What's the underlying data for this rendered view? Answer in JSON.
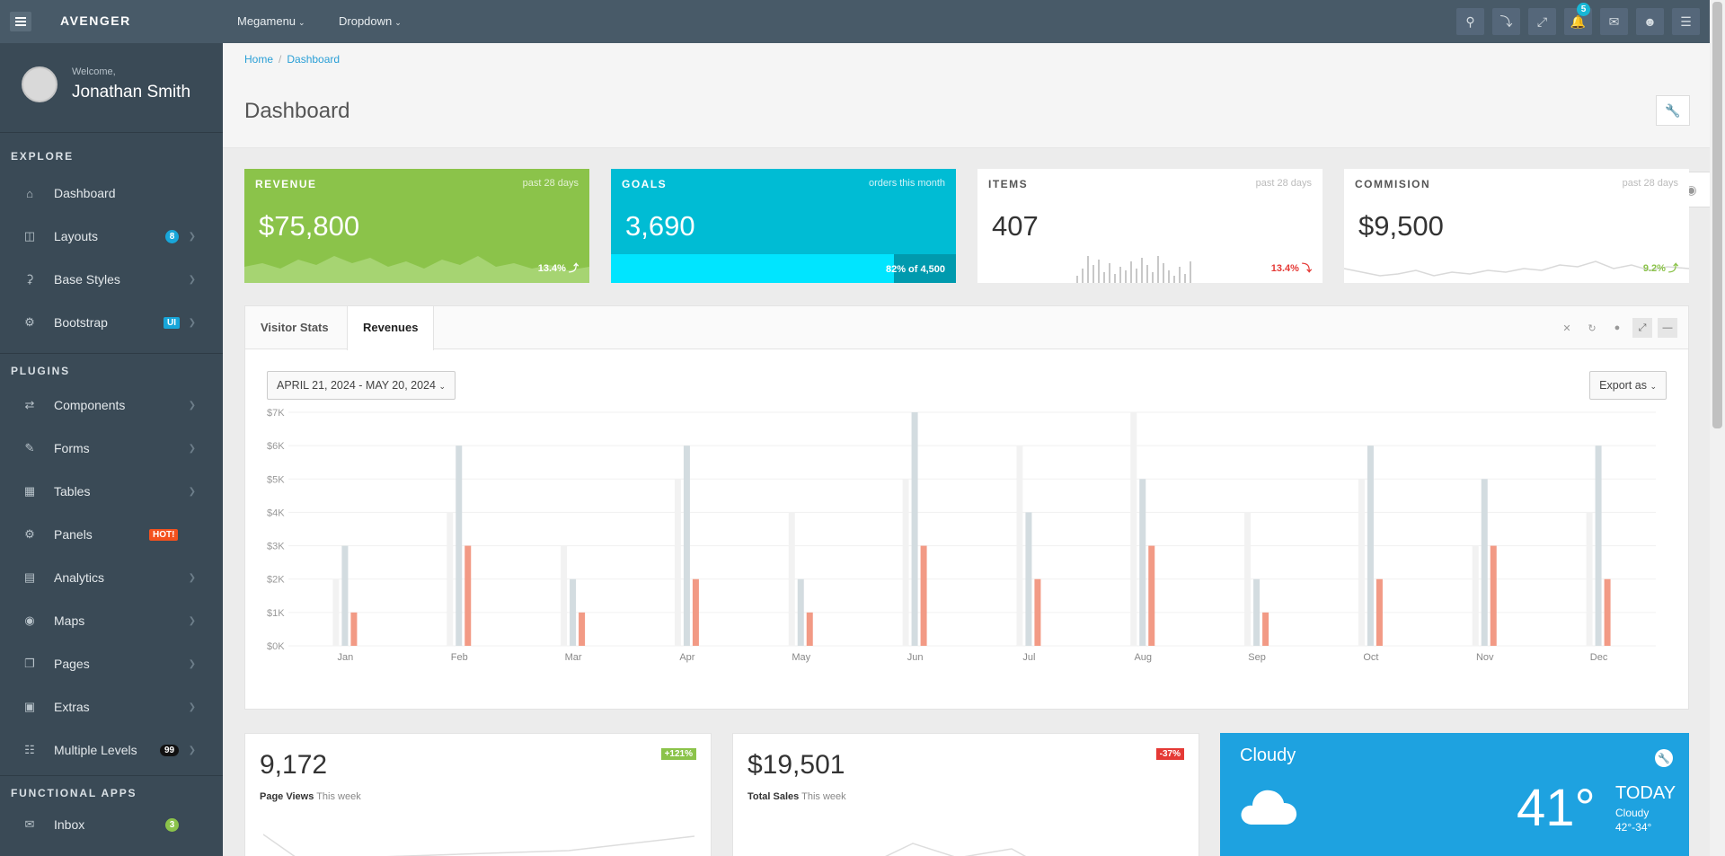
{
  "topbar": {
    "brand": "AVENGER",
    "links": [
      {
        "label": "Megamenu"
      },
      {
        "label": "Dropdown"
      }
    ],
    "notif_count": "5",
    "icons": [
      "search-icon",
      "import-icon",
      "fullscreen-icon",
      "bell-icon",
      "mail-icon",
      "user-icon",
      "menu-icon"
    ]
  },
  "sidebar": {
    "welcome": "Welcome,",
    "user_name": "Jonathan Smith",
    "section_explore": "EXPLORE",
    "section_plugins": "PLUGINS",
    "section_functional": "FUNCTIONAL APPS",
    "items": [
      {
        "label": "Dashboard",
        "icon": "home-icon"
      },
      {
        "label": "Layouts",
        "icon": "layout-icon",
        "badge": "8"
      },
      {
        "label": "Base Styles",
        "icon": "flask-icon"
      },
      {
        "label": "Bootstrap",
        "icon": "cogs-icon",
        "badge": "UI"
      },
      {
        "label": "Components",
        "icon": "random-icon"
      },
      {
        "label": "Forms",
        "icon": "pencil-icon"
      },
      {
        "label": "Tables",
        "icon": "table-icon"
      },
      {
        "label": "Panels",
        "icon": "cog-icon",
        "badge": "HOT!"
      },
      {
        "label": "Analytics",
        "icon": "bar-chart-icon"
      },
      {
        "label": "Maps",
        "icon": "map-marker-icon"
      },
      {
        "label": "Pages",
        "icon": "copy-icon"
      },
      {
        "label": "Extras",
        "icon": "briefcase-icon"
      },
      {
        "label": "Multiple Levels",
        "icon": "sitemap-icon",
        "badge": "99"
      },
      {
        "label": "Inbox",
        "icon": "inbox-icon",
        "badge": "3"
      }
    ]
  },
  "page": {
    "breadcrumb": [
      "Home",
      "Dashboard"
    ],
    "title": "Dashboard"
  },
  "tiles": [
    {
      "title": "REVENUE",
      "period": "past 28 days",
      "value": "$75,800",
      "footer": "13.4% ⤴",
      "color": "#8bc34a"
    },
    {
      "title": "GOALS",
      "period": "orders this month",
      "value": "3,690",
      "footer": "82% of 4,500",
      "progress": 0.82,
      "color": "#00bcd4"
    },
    {
      "title": "ITEMS",
      "period": "past 28 days",
      "value": "407",
      "footer": "13.4% ⤵",
      "color": "#ffffff"
    },
    {
      "title": "COMMISION",
      "period": "past 28 days",
      "value": "$9,500",
      "footer": "9.2% ⤴",
      "color": "#ffffff"
    }
  ],
  "panel": {
    "tabs": [
      "Visitor Stats",
      "Revenues"
    ],
    "active_tab": "Revenues",
    "date_range": "APRIL 21, 2024 - MAY 20, 2024",
    "export_label": "Export as"
  },
  "chart_data": {
    "type": "bar",
    "categories": [
      "Jan",
      "Feb",
      "Mar",
      "Apr",
      "May",
      "Jun",
      "Jul",
      "Aug",
      "Sep",
      "Oct",
      "Nov",
      "Dec"
    ],
    "series": [
      {
        "values": [
          2,
          4,
          3,
          5,
          4,
          5,
          6,
          7,
          4,
          5,
          3,
          4
        ],
        "color": "#f2f2f2"
      },
      {
        "values": [
          3,
          6,
          2,
          6,
          2,
          7,
          4,
          5,
          2,
          6,
          5,
          6
        ],
        "color": "#d3dce0"
      },
      {
        "values": [
          1,
          3,
          1,
          2,
          1,
          3,
          2,
          3,
          1,
          2,
          3,
          2
        ],
        "color": "#f29a85"
      }
    ],
    "y_ticks": [
      "$0K",
      "$1K",
      "$2K",
      "$3K",
      "$4K",
      "$5K",
      "$6K",
      "$7K"
    ],
    "ylim": [
      0,
      7
    ],
    "grid": true
  },
  "cards": [
    {
      "value": "9,172",
      "label": "Page Views",
      "period": "This week",
      "change": "+121%",
      "change_color": "#8bc34a"
    },
    {
      "value": "$19,501",
      "label": "Total Sales",
      "period": "This week",
      "change": "-37%",
      "change_color": "#e53935"
    }
  ],
  "weather": {
    "condition": "Cloudy",
    "temp": "41°",
    "today": "TODAY",
    "desc": "Cloudy",
    "range": "42°-34°"
  }
}
